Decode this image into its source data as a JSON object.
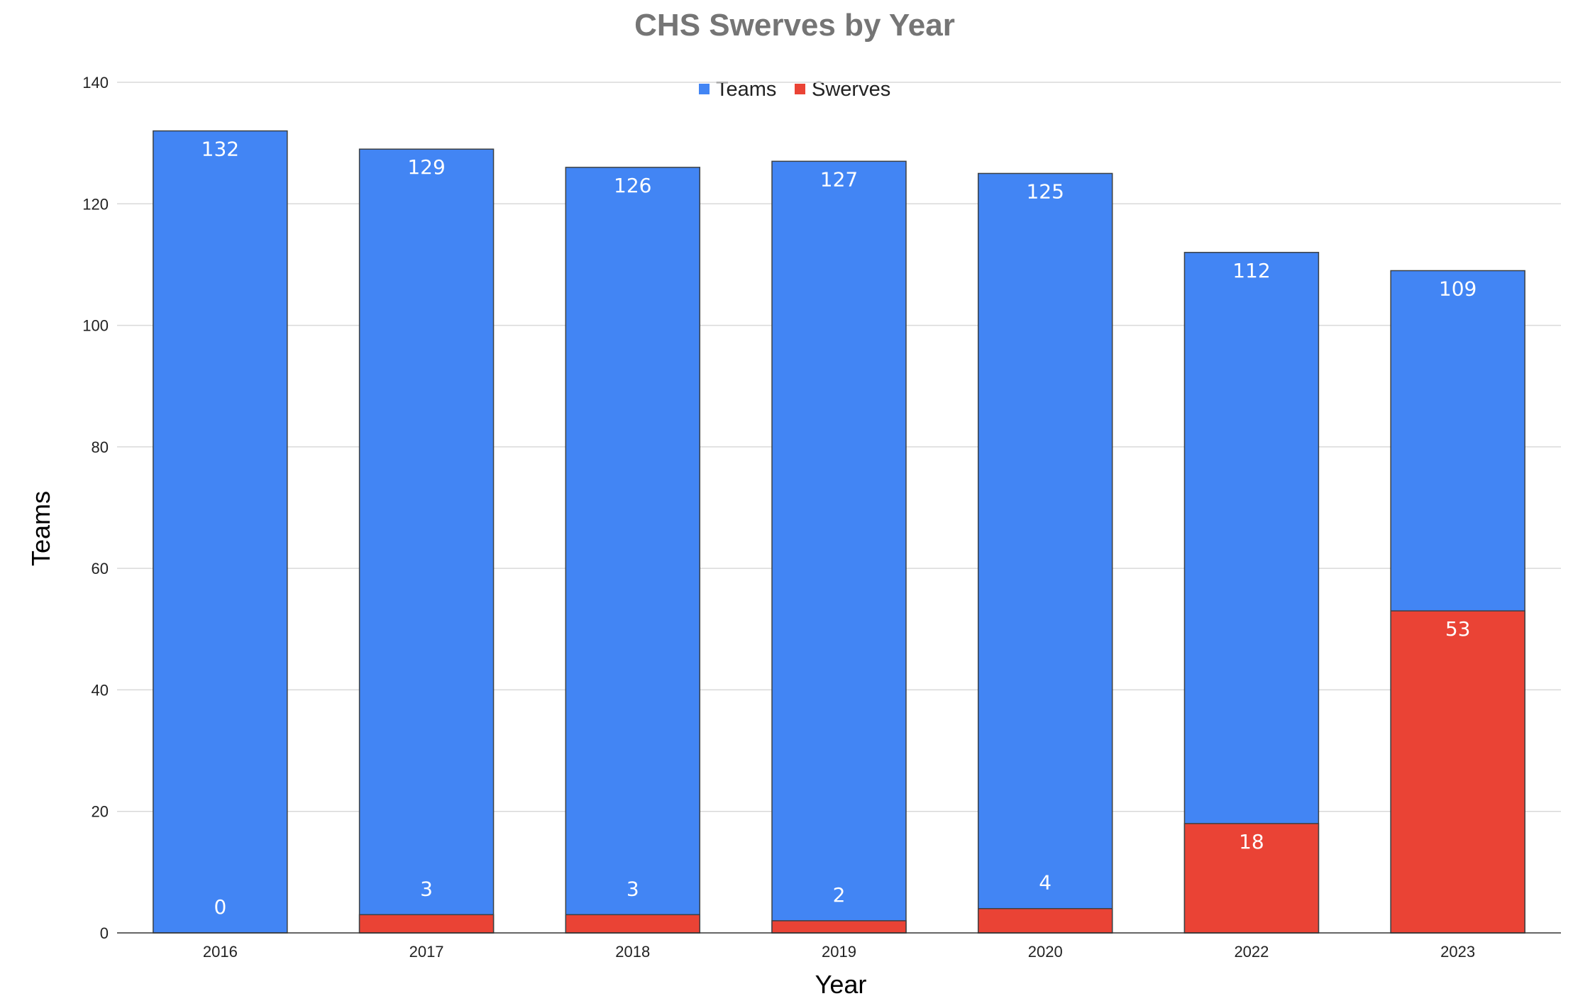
{
  "chart_data": {
    "type": "bar",
    "title": "CHS Swerves by Year",
    "xlabel": "Year",
    "ylabel": "Teams",
    "categories": [
      "2016",
      "2017",
      "2018",
      "2019",
      "2020",
      "2022",
      "2023"
    ],
    "series": [
      {
        "name": "Teams",
        "color": "#4285f4",
        "values": [
          132,
          129,
          126,
          127,
          125,
          112,
          109
        ]
      },
      {
        "name": "Swerves",
        "color": "#ea4335",
        "values": [
          0,
          3,
          3,
          2,
          4,
          18,
          53
        ]
      }
    ],
    "overlapping": true,
    "ylim": [
      0,
      140
    ],
    "yticks": [
      0,
      20,
      40,
      60,
      80,
      100,
      120,
      140
    ],
    "grid": true,
    "legend": "top-center",
    "data_labels": true
  }
}
